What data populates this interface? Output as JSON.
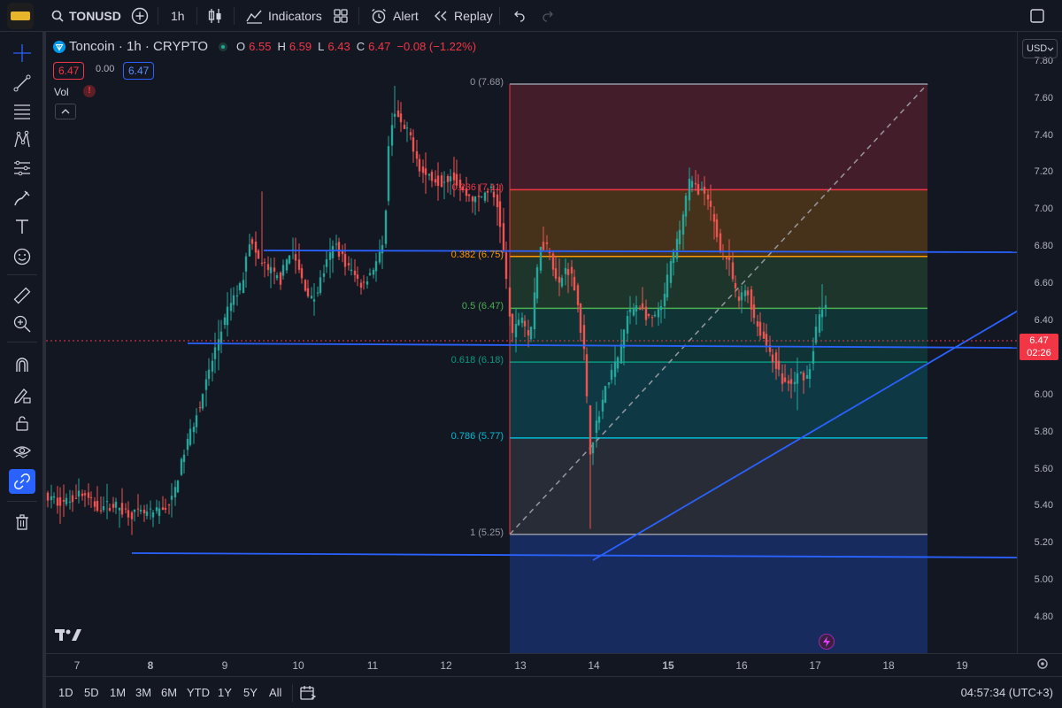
{
  "header": {
    "symbol": "TONUSD",
    "interval": "1h",
    "indicators_label": "Indicators",
    "alert_label": "Alert",
    "replay_label": "Replay"
  },
  "legend": {
    "name": "Toncoin · 1h · CRYPTO",
    "o_label": "O",
    "o": "6.55",
    "h_label": "H",
    "h": "6.59",
    "l_label": "L",
    "l": "6.43",
    "c_label": "C",
    "c": "6.47",
    "change": "−0.08 (−1.22%)",
    "bid": "6.47",
    "spread": "0.00",
    "ask": "6.47",
    "vol_label": "Vol"
  },
  "currency": "USD",
  "price_tag": {
    "price": "6.47",
    "countdown": "02:26"
  },
  "price_axis": [
    "7.80",
    "7.60",
    "7.40",
    "7.20",
    "7.00",
    "6.80",
    "6.60",
    "6.40",
    "6.20",
    "6.00",
    "5.80",
    "5.60",
    "5.40",
    "5.20",
    "5.00",
    "4.80"
  ],
  "time_axis": [
    "7",
    "8",
    "9",
    "10",
    "11",
    "12",
    "13",
    "14",
    "15",
    "16",
    "17",
    "18",
    "19"
  ],
  "fib_levels": [
    {
      "label": "0 (7.68)",
      "price": 7.68,
      "color": "#9598a1"
    },
    {
      "label": "0.236 (7.11)",
      "price": 7.11,
      "color": "#f23645"
    },
    {
      "label": "0.382 (6.75)",
      "price": 6.75,
      "color": "#ff9800"
    },
    {
      "label": "0.5 (6.47)",
      "price": 6.47,
      "color": "#4caf50"
    },
    {
      "label": "0.618 (6.18)",
      "price": 6.18,
      "color": "#089981"
    },
    {
      "label": "0.786 (5.77)",
      "price": 5.77,
      "color": "#00bcd4"
    },
    {
      "label": "1 (5.25)",
      "price": 5.25,
      "color": "#9598a1"
    }
  ],
  "bottom": {
    "ranges": [
      "1D",
      "5D",
      "1M",
      "3M",
      "6M",
      "YTD",
      "1Y",
      "5Y",
      "All"
    ],
    "clock": "04:57:34 (UTC+3)"
  },
  "colors": {
    "up": "#26a69a",
    "down": "#ef5350",
    "trendline": "#2962ff",
    "background": "#131722"
  }
}
